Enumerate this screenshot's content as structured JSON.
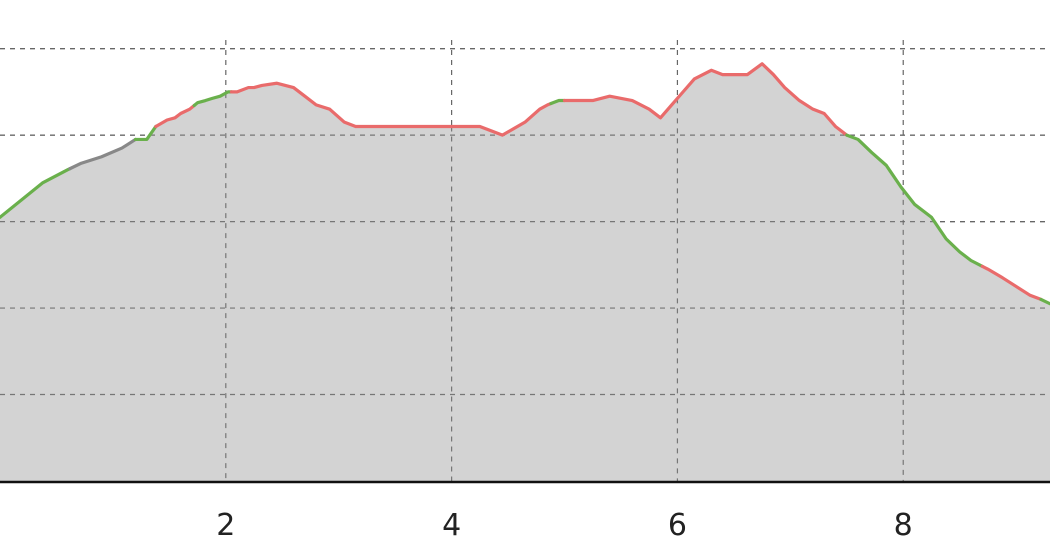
{
  "chart_data": {
    "type": "area",
    "title": "",
    "xlabel": "",
    "ylabel": "",
    "xlim": [
      0,
      9.3
    ],
    "ylim": [
      0,
      102
    ],
    "x_ticks": [
      "2",
      "4",
      "6",
      "8"
    ],
    "x_tick_values": [
      2,
      4,
      6,
      8
    ],
    "y_gridlines": [
      20,
      40,
      60,
      80,
      100
    ],
    "grid": true,
    "grid_style": "dashed",
    "colors": {
      "fill": "#d3d3d3",
      "grid": "#666666",
      "axis": "#111111",
      "uphill": "#e96b6b",
      "downhill": "#6ab04c",
      "flat": "#888888"
    },
    "series": [
      {
        "x": [
          0,
          0.38,
          0.6,
          0.72,
          0.9,
          1.08,
          1.2,
          1.3,
          1.38,
          1.48,
          1.55,
          1.6,
          1.68,
          1.75,
          1.82,
          1.88,
          1.95,
          2.02,
          2.1,
          2.2,
          2.25,
          2.32,
          2.45,
          2.6,
          2.7,
          2.8,
          2.92,
          3.05,
          3.15,
          3.25,
          3.35,
          3.48,
          3.6,
          3.75,
          3.9,
          4.05,
          4.25,
          4.45,
          4.65,
          4.78,
          4.85,
          4.95,
          5.1,
          5.25,
          5.4,
          5.6,
          5.75,
          5.85,
          5.95,
          6.05,
          6.15,
          6.3,
          6.4,
          6.5,
          6.62,
          6.75,
          6.85,
          6.95,
          7.08,
          7.2,
          7.3,
          7.4,
          7.5,
          7.6,
          7.72,
          7.85,
          7.98,
          8.1,
          8.25,
          8.38,
          8.5,
          8.6,
          8.75,
          8.88,
          9.0,
          9.12,
          9.22,
          9.3
        ],
        "y": [
          61,
          69,
          72,
          73.5,
          75,
          77,
          79,
          79,
          82,
          83.5,
          84,
          85,
          86,
          87.5,
          88,
          88.5,
          89,
          90,
          90,
          91,
          91,
          91.5,
          92,
          91,
          89,
          87,
          86,
          83,
          82,
          82,
          82,
          82,
          82,
          82,
          82,
          82,
          82,
          80,
          83,
          86,
          87,
          88,
          88,
          88,
          89,
          88,
          86,
          84,
          87,
          90,
          93,
          95,
          94,
          94,
          94,
          96.5,
          94,
          91,
          88,
          86,
          85,
          82,
          80,
          79,
          76,
          73,
          68,
          64,
          61,
          56,
          53,
          51,
          49,
          47,
          45,
          43,
          42,
          41
        ],
        "segments": [
          {
            "from": 0.0,
            "to": 0.62,
            "grade": "downhill"
          },
          {
            "from": 0.62,
            "to": 1.2,
            "grade": "flat"
          },
          {
            "from": 1.2,
            "to": 1.38,
            "grade": "downhill"
          },
          {
            "from": 1.38,
            "to": 1.72,
            "grade": "uphill"
          },
          {
            "from": 1.72,
            "to": 2.05,
            "grade": "downhill"
          },
          {
            "from": 2.05,
            "to": 4.88,
            "grade": "uphill"
          },
          {
            "from": 4.88,
            "to": 5.0,
            "grade": "downhill"
          },
          {
            "from": 5.0,
            "to": 7.5,
            "grade": "uphill"
          },
          {
            "from": 7.5,
            "to": 8.7,
            "grade": "downhill"
          },
          {
            "from": 8.7,
            "to": 9.22,
            "grade": "uphill"
          },
          {
            "from": 9.22,
            "to": 9.3,
            "grade": "downhill"
          }
        ]
      }
    ]
  }
}
